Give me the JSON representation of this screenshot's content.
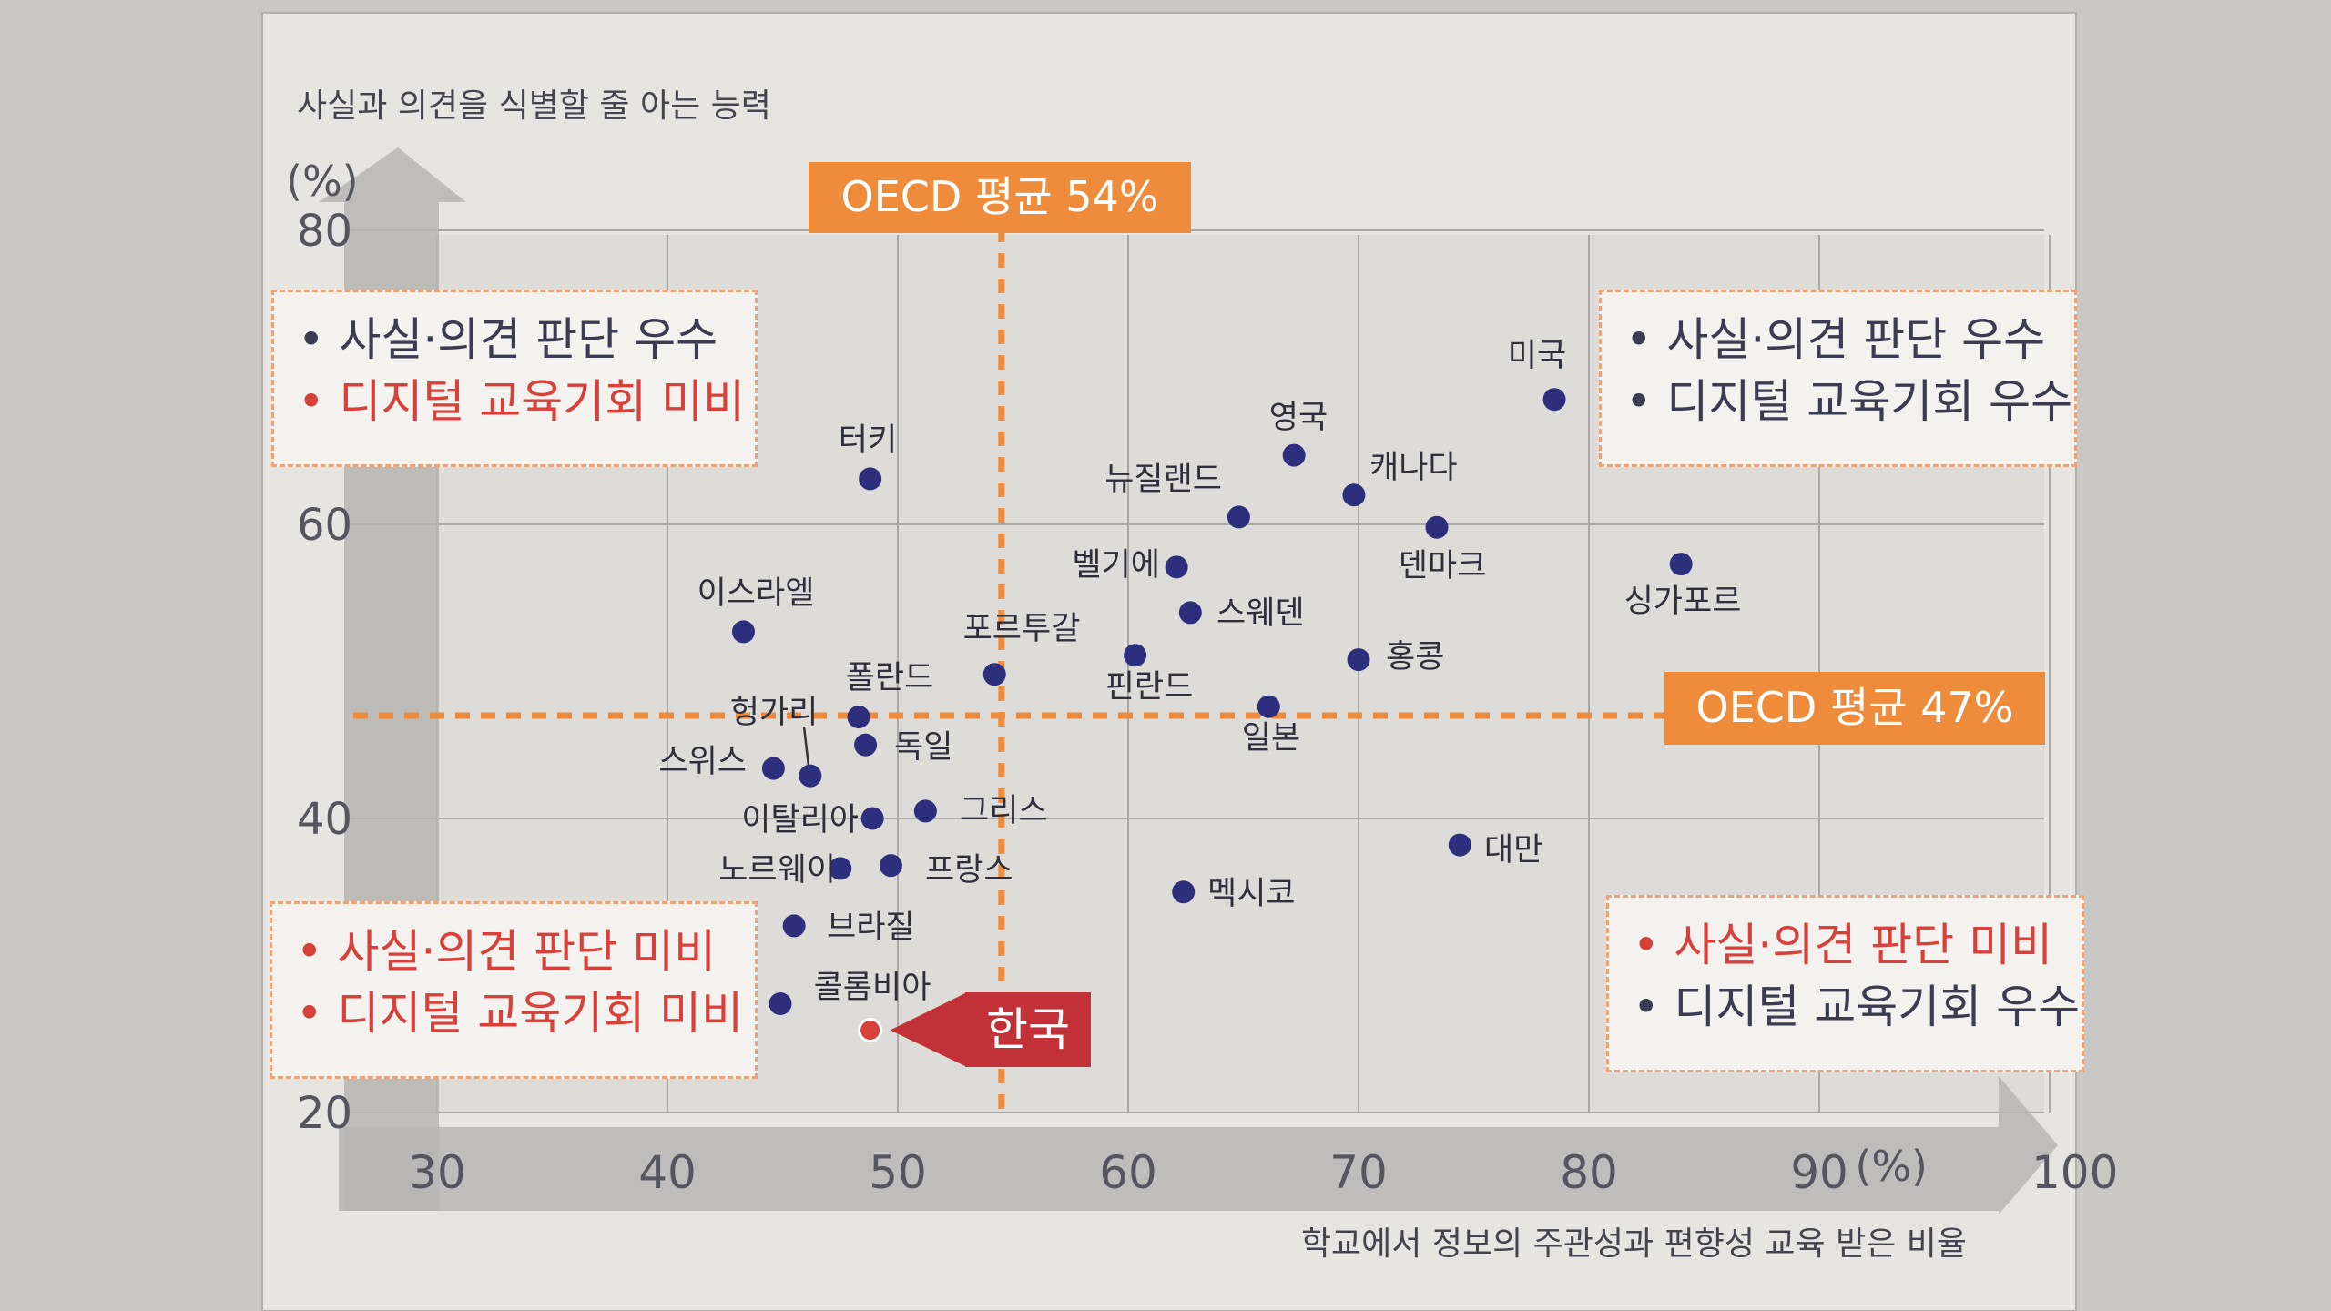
{
  "chart_data": {
    "type": "scatter",
    "title": "",
    "ylabel": "사실과 의견을 식별할 줄 아는 능력",
    "xlabel": "학교에서 정보의 주관성과 편향성 교육 받은 비율",
    "y_unit": "(%)",
    "x_unit": "(%)",
    "xlim": [
      25,
      100
    ],
    "ylim": [
      20,
      80
    ],
    "x_ticks": [
      30,
      40,
      50,
      60,
      70,
      80,
      90,
      100
    ],
    "y_ticks": [
      20,
      40,
      60,
      80
    ],
    "grid": true,
    "reference_lines": {
      "vertical": {
        "label": "OECD 평균 54%",
        "x": 54.5
      },
      "horizontal": {
        "label": "OECD 평균 47%",
        "y": 47
      }
    },
    "quadrants": {
      "top_left": [
        "사실·의견 판단 우수",
        "디지털 교육기회 미비"
      ],
      "top_right": [
        "사실·의견 판단 우수",
        "디지털 교육기회 우수"
      ],
      "bottom_left": [
        "사실·의견 판단 미비",
        "디지털 교육기회 미비"
      ],
      "bottom_right": [
        "사실·의견 판단 미비",
        "디지털 교육기회 우수"
      ]
    },
    "points": [
      {
        "name": "미국",
        "x": 78.5,
        "y": 68.5
      },
      {
        "name": "영국",
        "x": 67.2,
        "y": 64.7
      },
      {
        "name": "캐나다",
        "x": 69.8,
        "y": 62.0
      },
      {
        "name": "뉴질랜드",
        "x": 64.8,
        "y": 60.5
      },
      {
        "name": "덴마크",
        "x": 73.4,
        "y": 59.8
      },
      {
        "name": "싱가포르",
        "x": 84.0,
        "y": 57.3
      },
      {
        "name": "터키",
        "x": 48.8,
        "y": 63.1
      },
      {
        "name": "벨기에",
        "x": 62.1,
        "y": 57.1
      },
      {
        "name": "스웨덴",
        "x": 62.7,
        "y": 54.0
      },
      {
        "name": "이스라엘",
        "x": 43.3,
        "y": 52.7
      },
      {
        "name": "포르투갈",
        "x": 54.2,
        "y": 49.8
      },
      {
        "name": "핀란드",
        "x": 60.3,
        "y": 51.1
      },
      {
        "name": "홍콩",
        "x": 70.0,
        "y": 50.8
      },
      {
        "name": "일본",
        "x": 66.1,
        "y": 47.6
      },
      {
        "name": "폴란드",
        "x": 48.3,
        "y": 46.9
      },
      {
        "name": "독일",
        "x": 48.6,
        "y": 45.0
      },
      {
        "name": "헝가리",
        "x": 46.2,
        "y": 42.9
      },
      {
        "name": "스위스",
        "x": 44.6,
        "y": 43.4
      },
      {
        "name": "이탈리아",
        "x": 48.9,
        "y": 40.0
      },
      {
        "name": "그리스",
        "x": 51.2,
        "y": 40.5
      },
      {
        "name": "노르웨이",
        "x": 47.5,
        "y": 36.6
      },
      {
        "name": "프랑스",
        "x": 49.7,
        "y": 36.8
      },
      {
        "name": "대만",
        "x": 74.4,
        "y": 38.2
      },
      {
        "name": "멕시코",
        "x": 62.4,
        "y": 35.0
      },
      {
        "name": "브라질",
        "x": 45.5,
        "y": 32.7
      },
      {
        "name": "콜롬비아",
        "x": 44.9,
        "y": 27.4
      },
      {
        "name": "한국",
        "x": 48.8,
        "y": 25.6,
        "highlight": true
      }
    ]
  },
  "colors": {
    "point": "#2e2f7c",
    "highlight_point": "#d8403a",
    "orange": "#ef8c3c",
    "korea_tag": "#c23038",
    "text": "#3b3b52",
    "red_text": "#d8403a",
    "arrow_band": "#b7b6b4"
  }
}
